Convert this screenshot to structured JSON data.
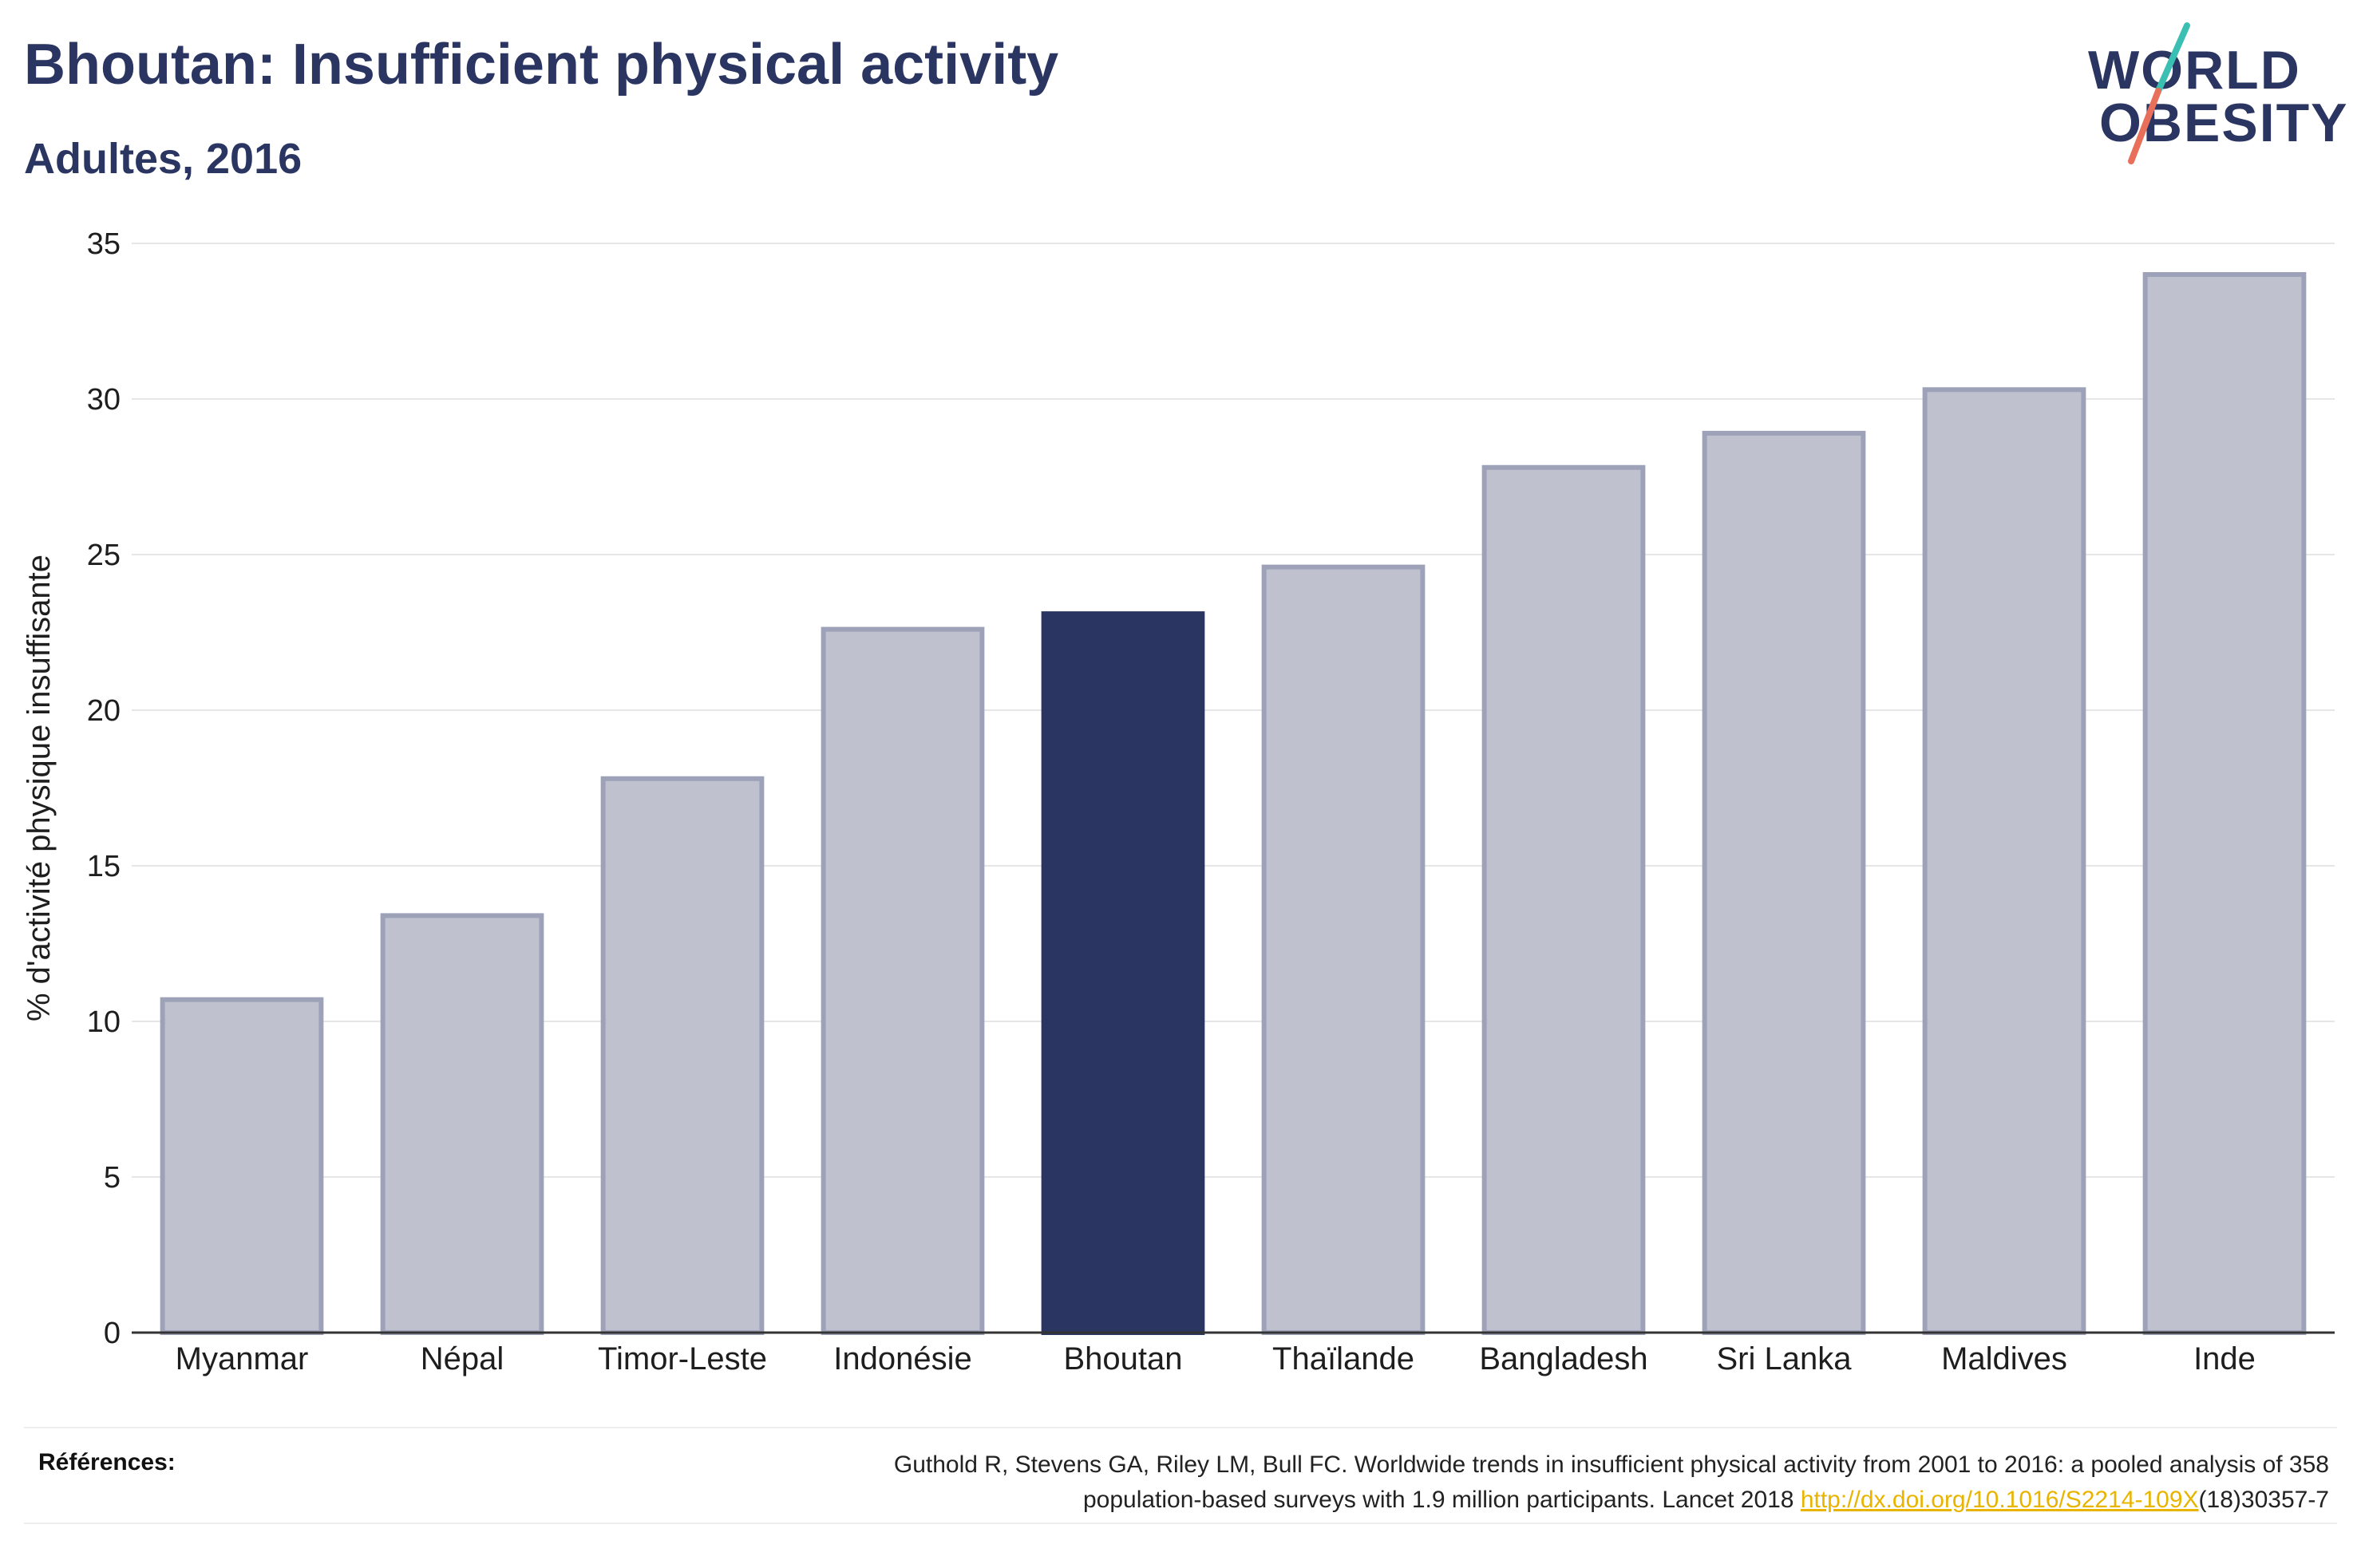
{
  "header": {
    "title": "Bhoutan: Insufficient physical activity",
    "subtitle": "Adultes, 2016"
  },
  "logo": {
    "line1": "WORLD",
    "line2": "OBESITY",
    "slash_color_top": "#3bbfb2",
    "slash_color_bottom": "#e8705a"
  },
  "chart_data": {
    "type": "bar",
    "title": "Bhoutan: Insufficient physical activity",
    "subtitle": "Adultes, 2016",
    "xlabel": "",
    "ylabel": "% d'activité physique insuffisante",
    "categories": [
      "Myanmar",
      "Népal",
      "Timor-Leste",
      "Indonésie",
      "Bhoutan",
      "Thaïlande",
      "Bangladesh",
      "Sri Lanka",
      "Maldives",
      "Inde"
    ],
    "values": [
      10.7,
      13.4,
      17.8,
      22.6,
      23.1,
      24.6,
      27.8,
      28.9,
      30.3,
      34.0
    ],
    "highlight": "Bhoutan",
    "ylim": [
      0,
      35
    ],
    "yticks": [
      0,
      5,
      10,
      15,
      20,
      25,
      30,
      35
    ],
    "grid": true,
    "colors": {
      "bar": "#bfc2ce",
      "bar_border": "#9da2b9",
      "highlight": "#2a3561",
      "grid": "#e6e6e6",
      "axis": "#333333"
    }
  },
  "references": {
    "label": "Références:",
    "line1": "Guthold R, Stevens GA, Riley LM, Bull FC. Worldwide trends in insufficient physical activity from 2001 to 2016: a pooled analysis of 358",
    "line2_pre": "population-based surveys with 1.9 million participants. Lancet 2018 ",
    "link": "http://dx.doi.org/10.1016/S2214-109X",
    "line2_post": "(18)30357-7"
  }
}
